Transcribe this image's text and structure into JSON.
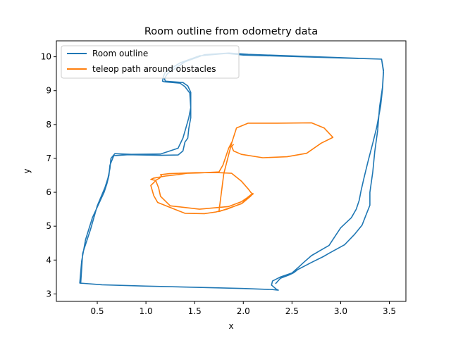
{
  "chart_data": {
    "type": "line",
    "title": "Room outline from odometry data",
    "xlabel": "x",
    "ylabel": "y",
    "xlim": [
      0.08,
      3.67
    ],
    "ylim": [
      2.78,
      10.47
    ],
    "xticks": [
      0.5,
      1.0,
      1.5,
      2.0,
      2.5,
      3.0,
      3.5
    ],
    "xtick_labels": [
      "0.5",
      "1.0",
      "1.5",
      "2.0",
      "2.5",
      "3.0",
      "3.5"
    ],
    "yticks": [
      3,
      4,
      5,
      6,
      7,
      8,
      9,
      10
    ],
    "ytick_labels": [
      "3",
      "4",
      "5",
      "6",
      "7",
      "8",
      "9",
      "10"
    ],
    "grid": false,
    "legend_position": "upper-left",
    "series": [
      {
        "name": "Room outline",
        "color": "#1f77b4",
        "x": [
          2.33,
          2.38,
          2.47,
          2.52,
          2.56,
          2.7,
          2.82,
          2.88,
          3.04,
          3.14,
          3.22,
          3.26,
          3.3,
          3.3,
          3.33,
          3.35,
          3.38,
          3.4,
          3.43,
          3.44,
          3.42,
          2.0,
          1.83,
          1.55,
          1.35,
          1.2,
          1.18,
          1.17,
          1.19,
          1.35,
          1.4,
          1.45,
          1.46,
          1.46,
          1.44,
          1.43,
          1.4,
          1.38,
          1.33,
          1.15,
          0.82,
          0.67,
          0.63,
          0.62,
          0.6,
          0.57,
          0.45,
          0.38,
          0.34,
          0.32,
          0.55,
          1.0,
          1.6,
          2.0,
          2.3,
          2.36,
          2.34,
          2.29,
          2.3,
          2.38,
          2.5,
          2.56,
          2.62,
          2.7,
          2.8,
          2.88,
          3.0,
          3.11,
          3.16,
          3.19,
          3.21,
          3.24,
          3.28,
          3.33,
          3.37,
          3.41,
          3.43,
          3.44,
          3.42,
          2.05,
          1.85,
          1.6,
          1.4,
          1.22,
          1.19,
          1.2,
          1.38,
          1.43,
          1.46,
          1.46,
          1.44,
          1.41,
          1.38,
          1.33,
          1.15,
          0.85,
          0.68,
          0.64,
          0.63,
          0.61,
          0.58,
          0.5,
          0.43,
          0.35,
          0.33
        ],
        "y": [
          3.3,
          3.46,
          3.56,
          3.63,
          3.72,
          3.93,
          4.1,
          4.2,
          4.45,
          4.75,
          5.03,
          5.33,
          5.62,
          6.0,
          6.6,
          7.2,
          7.82,
          8.53,
          9.1,
          9.6,
          9.93,
          10.05,
          10.1,
          10.03,
          9.82,
          9.55,
          9.42,
          9.28,
          9.26,
          9.22,
          9.12,
          8.93,
          8.5,
          8.2,
          7.88,
          7.6,
          7.48,
          7.22,
          7.1,
          7.09,
          7.11,
          7.08,
          6.8,
          6.5,
          6.26,
          6.0,
          5.25,
          4.6,
          3.97,
          3.32,
          3.27,
          3.23,
          3.19,
          3.16,
          3.13,
          3.11,
          3.14,
          3.26,
          3.38,
          3.5,
          3.62,
          3.77,
          3.93,
          4.13,
          4.3,
          4.43,
          4.95,
          5.25,
          5.5,
          5.76,
          6.05,
          6.43,
          6.9,
          7.45,
          7.92,
          8.54,
          9.05,
          9.55,
          9.93,
          10.07,
          10.11,
          10.06,
          9.85,
          9.5,
          9.35,
          9.28,
          9.24,
          9.14,
          8.95,
          8.5,
          8.2,
          7.9,
          7.6,
          7.3,
          7.13,
          7.12,
          7.14,
          7.0,
          6.7,
          6.42,
          6.15,
          5.6,
          4.9,
          4.2,
          3.3
        ]
      },
      {
        "name": "teleop path around obstacles",
        "color": "#ff7f0e",
        "x": [
          1.88,
          1.85,
          1.79,
          1.75,
          1.55,
          1.42,
          1.35,
          1.2,
          1.08,
          1.05,
          1.1,
          1.13,
          1.15,
          1.25,
          1.55,
          1.85,
          1.98,
          2.04,
          2.08,
          2.1,
          2.07,
          1.99,
          1.83,
          1.72,
          1.6,
          1.4,
          1.12,
          1.08,
          1.05,
          1.11,
          1.14,
          1.16,
          1.15,
          1.24,
          1.51,
          1.75,
          1.88,
          1.98,
          2.05,
          2.08,
          2.1,
          2.05,
          1.98,
          1.82,
          1.75,
          1.8,
          1.88,
          1.93,
          2.05,
          2.35,
          2.7,
          2.83,
          2.92,
          2.8,
          2.65,
          2.45,
          2.2,
          1.98,
          1.9,
          1.88,
          1.9
        ],
        "y": [
          7.47,
          7.3,
          6.8,
          6.6,
          6.57,
          6.56,
          6.53,
          6.48,
          6.42,
          6.38,
          6.35,
          6.13,
          5.88,
          5.6,
          5.5,
          5.58,
          5.72,
          5.84,
          5.93,
          5.96,
          5.87,
          5.68,
          5.5,
          5.42,
          5.37,
          5.38,
          5.7,
          5.9,
          6.2,
          6.37,
          6.42,
          6.48,
          6.52,
          6.55,
          6.58,
          6.58,
          6.56,
          6.33,
          6.1,
          5.99,
          5.95,
          5.85,
          5.66,
          5.5,
          5.43,
          6.55,
          7.45,
          7.9,
          8.04,
          8.04,
          8.05,
          7.9,
          7.62,
          7.45,
          7.15,
          7.05,
          7.02,
          7.12,
          7.22,
          7.35,
          7.42
        ]
      }
    ]
  }
}
